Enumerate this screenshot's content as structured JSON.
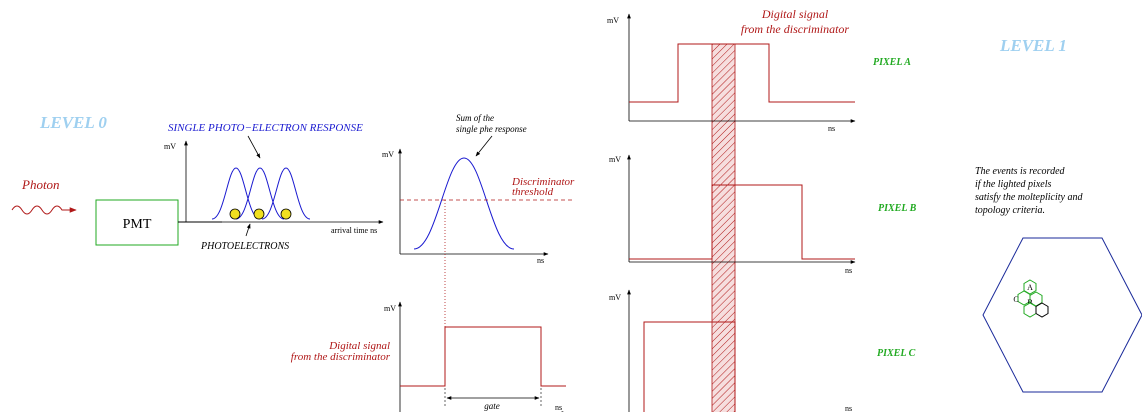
{
  "labels": {
    "level0": "LEVEL 0",
    "level1": "LEVEL 1",
    "photon": "Photon",
    "pmt": "PMT",
    "spe_response": "SINGLE PHOTO−ELECTRON RESPONSE",
    "photoelectrons": "PHOTOELECTRONS",
    "arrival_time": "arrival time ns",
    "sum_line1": "Sum of the",
    "sum_line2": "single phe response",
    "disc_line1": "Discriminator",
    "disc_line2": "threshold",
    "digital_line1": "Digital signal",
    "digital_line2": "from the discriminator",
    "gate": "gate",
    "mv": "mV",
    "ns": "ns",
    "pixel_a": "PIXEL A",
    "pixel_b": "PIXEL B",
    "pixel_c": "PIXEL C",
    "events_line1": "The events is recorded",
    "events_line2": "if the lighted pixels",
    "events_line3": "satisfy the molteplicity and",
    "events_line4": "topology criteria.",
    "hex_a": "A",
    "hex_b": "B",
    "hex_c": "C"
  },
  "colors": {
    "level": "#9fd0f0",
    "blue": "#1a1ad0",
    "red": "#b01818",
    "green": "#22aa22",
    "yellow": "#f0e020",
    "hex_outline": "#1a2a9a"
  }
}
